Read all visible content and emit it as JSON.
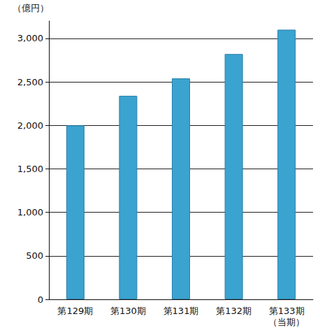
{
  "chart_data": {
    "type": "bar",
    "y_label": "（億円）",
    "categories": [
      "第129期",
      "第130期",
      "第131期",
      "第132期",
      "第133期\n（当期）"
    ],
    "values": [
      2000,
      2340,
      2540,
      2820,
      3100
    ],
    "color": "#3ba3d0",
    "ylim": [
      0,
      3200
    ],
    "yticks": [
      0,
      500,
      {
        "value": 1000,
        "label": "1,000"
      },
      {
        "value": 1500,
        "label": "1,500"
      },
      {
        "value": 2000,
        "label": "2,000"
      },
      {
        "value": 2500,
        "label": "2,500"
      },
      {
        "value": 3000,
        "label": "3,000"
      }
    ],
    "grid": true
  }
}
